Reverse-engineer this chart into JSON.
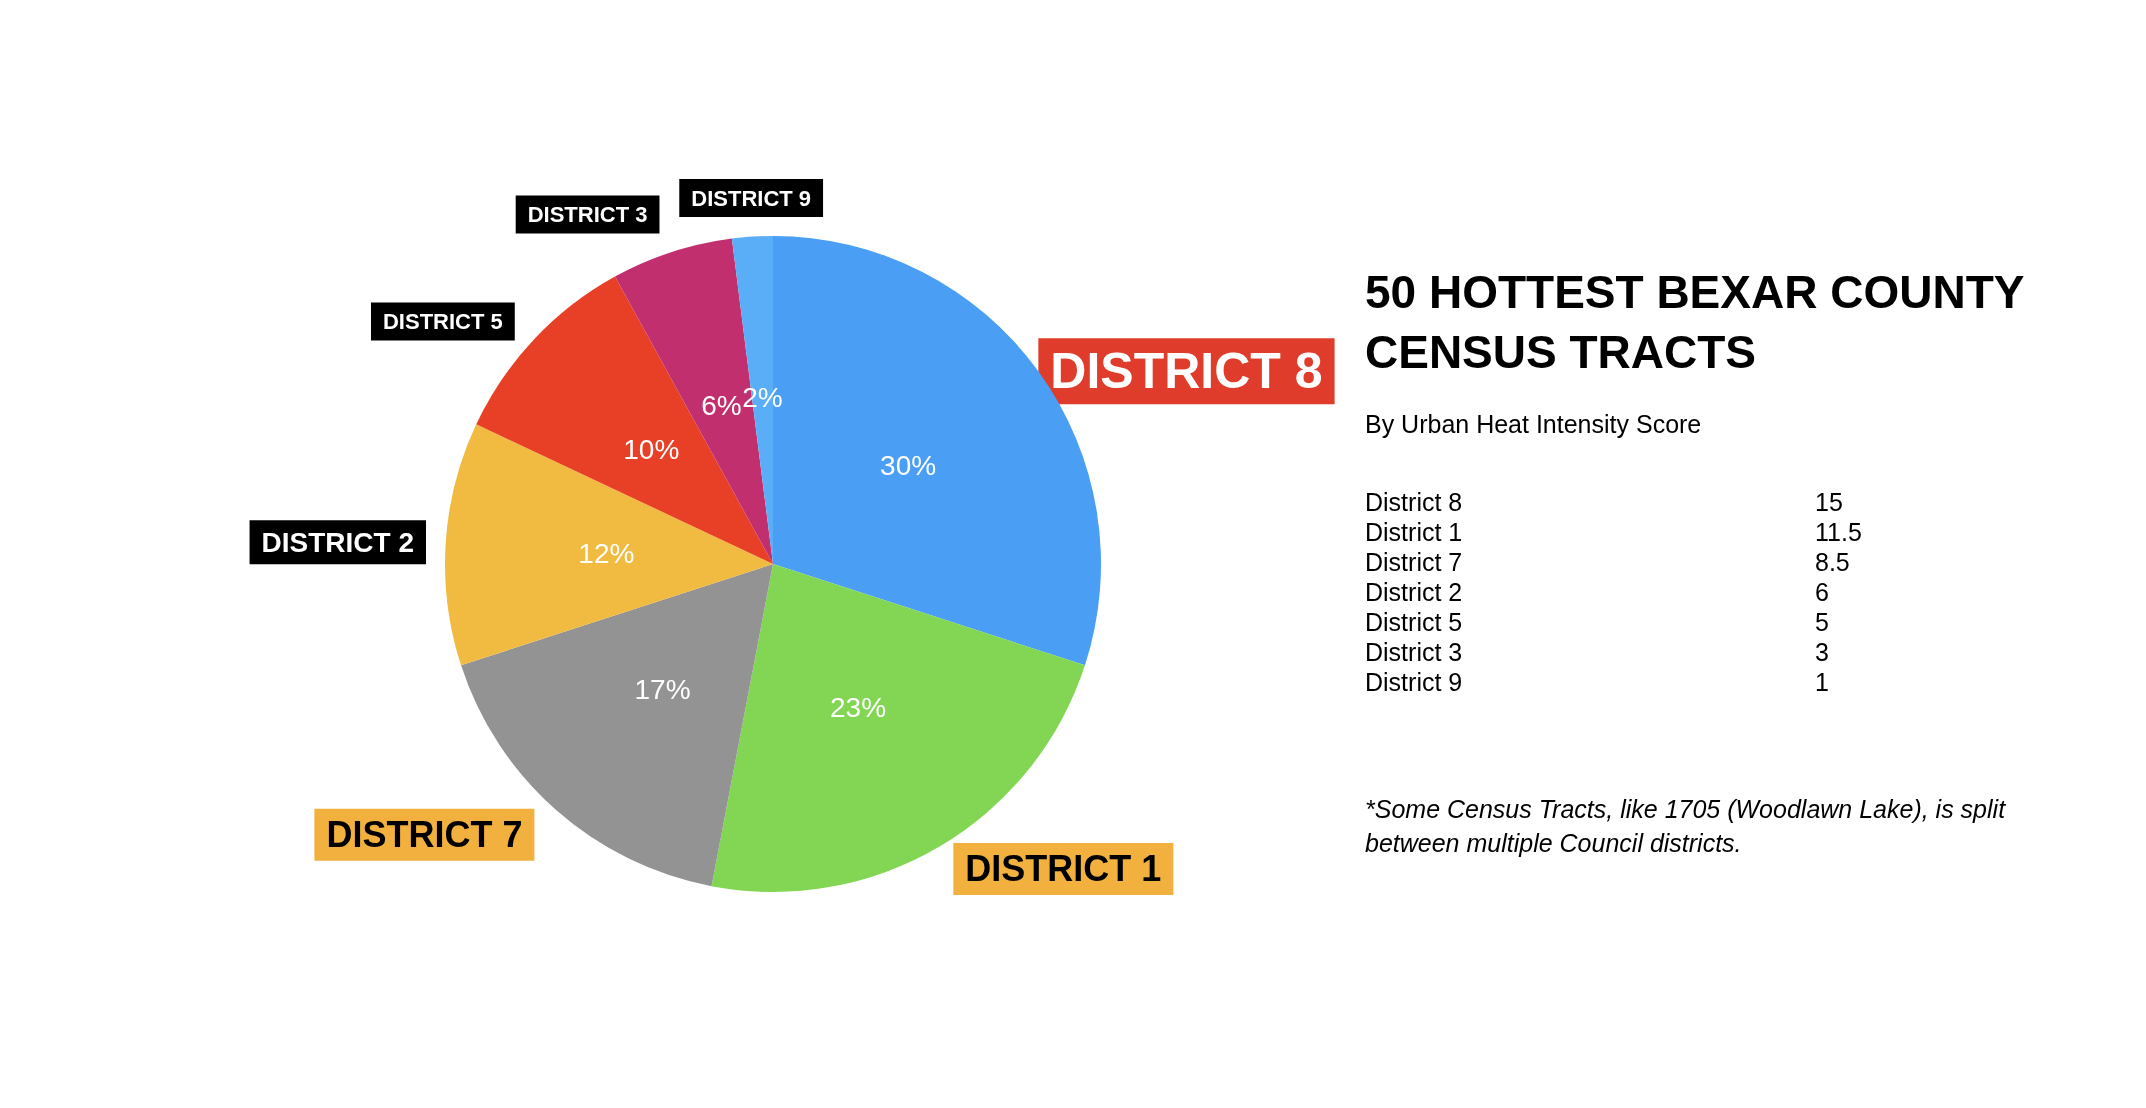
{
  "chart_data": {
    "type": "pie",
    "title": "50 HOTTEST BEXAR COUNTY CENSUS TRACTS",
    "subtitle": "By Urban Heat Intensity Score",
    "categories": [
      "DISTRICT 8",
      "DISTRICT 1",
      "DISTRICT 7",
      "DISTRICT 2",
      "DISTRICT 5",
      "DISTRICT 3",
      "DISTRICT 9"
    ],
    "values": [
      30,
      23,
      17,
      12,
      10,
      6,
      2
    ],
    "value_labels": [
      "30%",
      "23%",
      "17%",
      "12%",
      "10%",
      "6%",
      "2%"
    ],
    "colors": [
      "#4a9ff5",
      "#82d654",
      "#939393",
      "#f0bb40",
      "#e83f27",
      "#c22f6f",
      "#5aaef7"
    ],
    "annotations": [
      "District 8",
      "15",
      "District 1",
      "11.5",
      "District 7",
      "8.5",
      "District 2",
      "6",
      "District 5",
      "5",
      "District 3",
      "3",
      "District 9",
      "1",
      "*Some Census Tracts, like 1705 (Woodlawn Lake), is split between multiple Council districts."
    ],
    "legend": false
  }
}
